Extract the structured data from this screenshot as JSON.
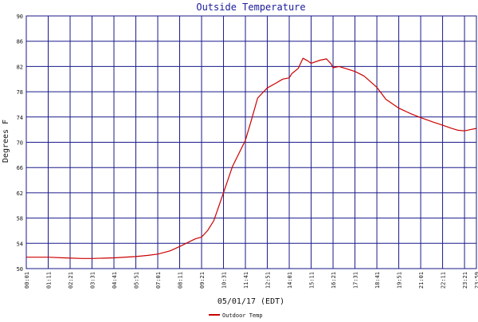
{
  "chart_data": {
    "type": "line",
    "title": "Outside Temperature",
    "xlabel": "05/01/17 (EDT)",
    "ylabel": "Degrees F",
    "ylim": [
      50,
      90
    ],
    "yticks": [
      50,
      54,
      58,
      62,
      66,
      70,
      74,
      78,
      82,
      86,
      90
    ],
    "xlim": [
      "00:01",
      "23:59"
    ],
    "xtick_labels": [
      "00:01",
      "01:11",
      "02:21",
      "03:31",
      "04:41",
      "05:51",
      "07:01",
      "08:11",
      "09:21",
      "10:31",
      "11:41",
      "12:51",
      "14:01",
      "15:11",
      "16:21",
      "17:31",
      "18:41",
      "19:51",
      "21:01",
      "22:11",
      "23:21",
      "23:59"
    ],
    "grid": true,
    "legend": "bottom-left",
    "colors": {
      "series": "#cc0000",
      "grid": "#1a1a8a",
      "title": "#1a1a9a"
    },
    "series": [
      {
        "name": "Outdoor Temp",
        "x": [
          "00:01",
          "01:11",
          "02:00",
          "03:00",
          "03:31",
          "04:41",
          "05:51",
          "06:30",
          "07:01",
          "07:40",
          "08:11",
          "08:40",
          "09:00",
          "09:21",
          "09:40",
          "10:00",
          "10:31",
          "11:00",
          "11:41",
          "12:00",
          "12:20",
          "12:51",
          "13:20",
          "13:40",
          "14:01",
          "14:10",
          "14:30",
          "14:45",
          "15:00",
          "15:11",
          "15:40",
          "16:00",
          "16:15",
          "16:21",
          "16:40",
          "17:00",
          "17:31",
          "18:00",
          "18:41",
          "19:10",
          "19:51",
          "20:30",
          "21:01",
          "21:40",
          "22:11",
          "22:40",
          "23:00",
          "23:21",
          "23:40",
          "23:59"
        ],
        "y": [
          51.8,
          51.8,
          51.7,
          51.6,
          51.6,
          51.7,
          51.9,
          52.1,
          52.3,
          52.8,
          53.5,
          54.2,
          54.7,
          55.0,
          56.0,
          57.6,
          62.0,
          66.2,
          70.3,
          73.5,
          77.0,
          78.6,
          79.4,
          80.0,
          80.2,
          80.9,
          81.7,
          83.3,
          82.9,
          82.5,
          83.0,
          83.2,
          82.4,
          81.8,
          82.0,
          81.7,
          81.2,
          80.5,
          78.7,
          76.8,
          75.4,
          74.5,
          73.9,
          73.2,
          72.7,
          72.2,
          71.9,
          71.8,
          72.0,
          72.2
        ]
      }
    ]
  }
}
